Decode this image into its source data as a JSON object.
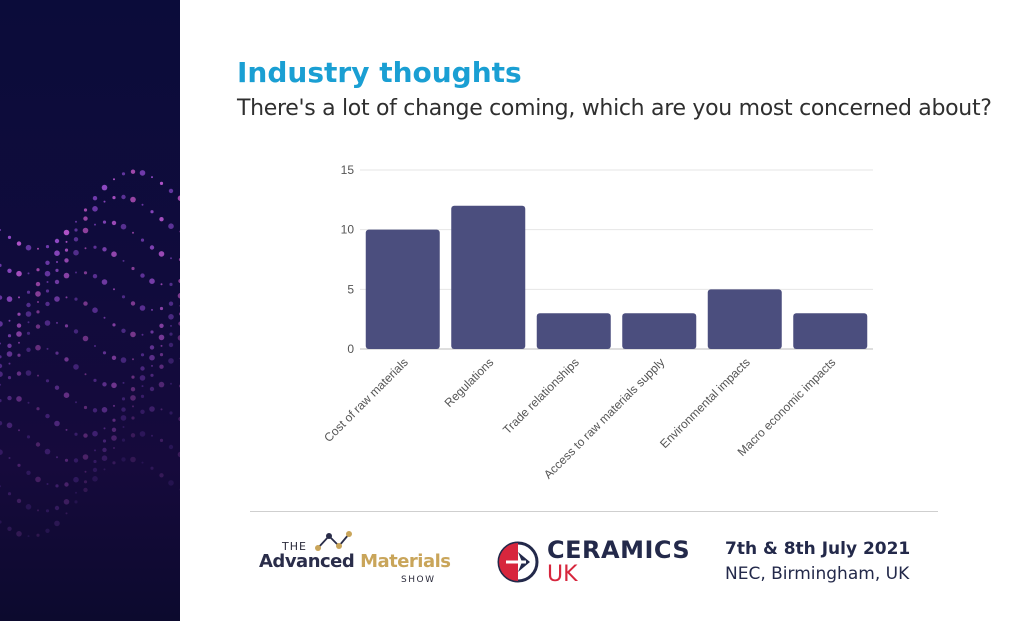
{
  "slide": {
    "title": "Industry thoughts",
    "subtitle": "There's a lot of change coming, which are you most concerned about?"
  },
  "chart_data": {
    "type": "bar",
    "title": "",
    "xlabel": "",
    "ylabel": "",
    "categories": [
      "Cost of raw materials",
      "Regulations",
      "Trade relationships",
      "Access to raw materials supply",
      "Environmental impacts",
      "Macro economic impacts"
    ],
    "values": [
      10,
      12,
      3,
      3,
      5,
      3
    ],
    "ylim": [
      0,
      15
    ],
    "yticks": [
      0,
      5,
      10,
      15
    ],
    "grid": true,
    "bar_color": "#4b4e7e"
  },
  "footer": {
    "tams_the": "THE",
    "tams_word1": "Advanced",
    "tams_word2": "Materials",
    "tams_show": "SHOW",
    "ceramics_top": "CERAMICS",
    "ceramics_bottom": "UK",
    "event_date": "7th & 8th July 2021",
    "event_venue": "NEC, Birmingham, UK"
  },
  "colors": {
    "title": "#1a9fd3",
    "accent_gold": "#c9a55a",
    "accent_red": "#d7263d",
    "navy": "#23294a"
  }
}
